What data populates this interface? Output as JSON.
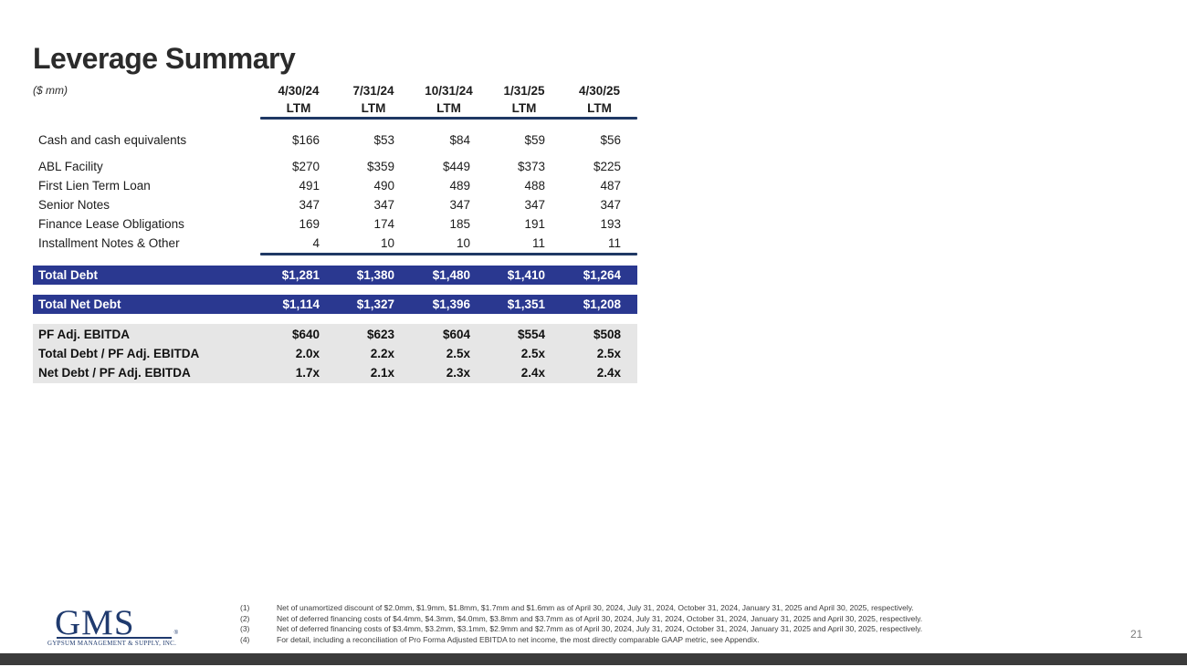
{
  "slide": {
    "title": "Leverage Summary",
    "units_label": "($ mm)",
    "page_number": "21"
  },
  "table": {
    "columns": [
      {
        "date": "4/30/24",
        "period": "LTM"
      },
      {
        "date": "7/31/24",
        "period": "LTM"
      },
      {
        "date": "10/31/24",
        "period": "LTM"
      },
      {
        "date": "1/31/25",
        "period": "LTM"
      },
      {
        "date": "4/30/25",
        "period": "LTM"
      }
    ],
    "cash_row": {
      "label": "Cash and cash equivalents",
      "values": [
        "$166",
        "$53",
        "$84",
        "$59",
        "$56"
      ]
    },
    "debt_rows": [
      {
        "label": "ABL Facility",
        "values": [
          "$270",
          "$359",
          "$449",
          "$373",
          "$225"
        ]
      },
      {
        "label": "First Lien Term Loan",
        "values": [
          "491",
          "490",
          "489",
          "488",
          "487"
        ]
      },
      {
        "label": "Senior Notes",
        "values": [
          "347",
          "347",
          "347",
          "347",
          "347"
        ]
      },
      {
        "label": "Finance Lease Obligations",
        "values": [
          "169",
          "174",
          "185",
          "191",
          "193"
        ]
      },
      {
        "label": "Installment Notes & Other",
        "values": [
          "4",
          "10",
          "10",
          "11",
          "11"
        ]
      }
    ],
    "total_debt": {
      "label": "Total Debt",
      "values": [
        "$1,281",
        "$1,380",
        "$1,480",
        "$1,410",
        "$1,264"
      ]
    },
    "total_net_debt": {
      "label": "Total Net Debt",
      "values": [
        "$1,114",
        "$1,327",
        "$1,396",
        "$1,351",
        "$1,208"
      ]
    },
    "metric_rows": [
      {
        "label": "PF Adj. EBITDA",
        "values": [
          "$640",
          "$623",
          "$604",
          "$554",
          "$508"
        ]
      },
      {
        "label": "Total Debt / PF Adj. EBITDA",
        "values": [
          "2.0x",
          "2.2x",
          "2.5x",
          "2.5x",
          "2.5x"
        ]
      },
      {
        "label": "Net Debt / PF Adj. EBITDA",
        "values": [
          "1.7x",
          "2.1x",
          "2.3x",
          "2.4x",
          "2.4x"
        ]
      }
    ]
  },
  "footnotes": [
    {
      "num": "(1)",
      "text": "Net of unamortized discount of $2.0mm, $1.9mm, $1.8mm, $1.7mm and $1.6mm as of April 30, 2024, July 31, 2024, October 31, 2024, January 31, 2025 and April 30, 2025, respectively."
    },
    {
      "num": "(2)",
      "text": "Net of deferred financing costs of $4.4mm, $4.3mm, $4.0mm, $3.8mm and $3.7mm as of April 30, 2024, July 31, 2024, October 31, 2024, January 31, 2025 and April 30, 2025, respectively."
    },
    {
      "num": "(3)",
      "text": "Net of deferred financing costs of $3.4mm, $3.2mm, $3.1mm, $2.9mm and $2.7mm as of April 30, 2024, July 31, 2024, October 31, 2024, January 31, 2025 and April 30, 2025, respectively."
    },
    {
      "num": "(4)",
      "text": "For detail, including a reconciliation of Pro Forma Adjusted EBITDA to net income, the most directly comparable GAAP metric, see Appendix."
    }
  ],
  "logo": {
    "name": "GMS",
    "subtitle": "GYPSUM MANAGEMENT & SUPPLY, INC.",
    "registered_mark": "®"
  },
  "colors": {
    "navy_bar": "#2a3890",
    "navy_line": "#1f3864",
    "metric_band_bg": "#e6e6e6",
    "footer_bar": "#3b3b3b"
  }
}
